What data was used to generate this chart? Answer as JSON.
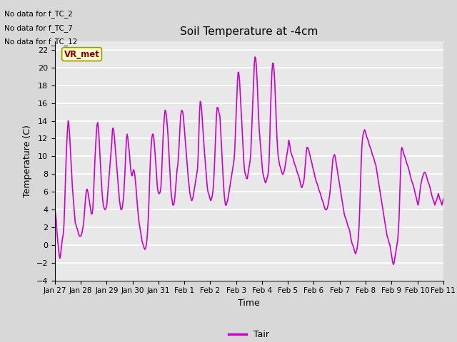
{
  "title": "Soil Temperature at -4cm",
  "xlabel": "Time",
  "ylabel": "Temperature (C)",
  "ylim": [
    -4,
    23
  ],
  "yticks": [
    -4,
    -2,
    0,
    2,
    4,
    6,
    8,
    10,
    12,
    14,
    16,
    18,
    20,
    22
  ],
  "line_color": "#cc00cc",
  "line_width": 1.2,
  "fig_bg_color": "#d8d8d8",
  "plot_bg_color": "#e8e8e8",
  "grid_color": "#ffffff",
  "legend_label": "Tair",
  "annotations": [
    "No data for f_TC_2",
    "No data for f_TC_7",
    "No data for f_TC_12"
  ],
  "annotation_box_label": "VR_met",
  "x_tick_labels": [
    "Jan 27",
    "Jan 28",
    "Jan 29",
    "Jan 30",
    "Jan 31",
    "Feb 1",
    "Feb 2",
    "Feb 3",
    "Feb 4",
    "Feb 5",
    "Feb 6",
    "Feb 7",
    "Feb 8",
    "Feb 9",
    "Feb 10",
    "Feb 11"
  ],
  "temp_data": [
    4.1,
    3.5,
    2.8,
    1.5,
    0.5,
    -0.2,
    -1.0,
    -1.5,
    -1.2,
    -0.5,
    0.2,
    0.8,
    1.2,
    2.3,
    4.5,
    7.0,
    9.5,
    11.5,
    13.0,
    14.0,
    13.5,
    12.5,
    11.0,
    9.5,
    8.0,
    6.5,
    5.5,
    4.5,
    3.5,
    2.5,
    2.3,
    2.0,
    1.8,
    1.5,
    1.2,
    1.0,
    1.0,
    1.0,
    1.2,
    1.5,
    2.0,
    2.5,
    3.5,
    4.5,
    5.5,
    6.2,
    6.3,
    6.0,
    5.5,
    5.0,
    4.5,
    4.0,
    3.5,
    3.5,
    4.0,
    5.5,
    7.5,
    9.5,
    11.0,
    12.5,
    13.5,
    13.8,
    13.2,
    12.0,
    10.5,
    9.0,
    7.5,
    6.2,
    5.2,
    4.5,
    4.2,
    4.0,
    4.0,
    4.2,
    4.5,
    5.5,
    6.5,
    7.5,
    8.5,
    9.5,
    10.5,
    11.5,
    13.0,
    13.2,
    12.8,
    12.0,
    11.0,
    10.0,
    9.0,
    8.0,
    7.0,
    6.0,
    5.0,
    4.5,
    4.0,
    4.0,
    4.2,
    4.8,
    5.5,
    7.0,
    8.5,
    10.5,
    12.0,
    12.5,
    12.0,
    11.2,
    10.5,
    9.5,
    8.5,
    8.0,
    7.8,
    8.2,
    8.5,
    8.3,
    7.8,
    7.0,
    6.0,
    5.0,
    4.0,
    3.2,
    2.5,
    2.0,
    1.5,
    1.0,
    0.5,
    0.2,
    -0.1,
    -0.3,
    -0.5,
    -0.4,
    -0.1,
    0.5,
    1.5,
    3.0,
    5.0,
    7.5,
    9.5,
    11.0,
    12.0,
    12.5,
    12.5,
    12.0,
    11.0,
    10.0,
    8.8,
    7.5,
    6.5,
    6.0,
    5.8,
    5.8,
    6.0,
    6.5,
    8.0,
    10.0,
    12.0,
    13.5,
    14.5,
    15.2,
    15.0,
    14.5,
    13.5,
    12.5,
    11.0,
    9.5,
    8.0,
    6.5,
    5.5,
    5.0,
    4.5,
    4.5,
    4.8,
    5.5,
    6.5,
    7.5,
    8.5,
    9.0,
    10.0,
    11.5,
    13.0,
    14.5,
    15.0,
    15.2,
    15.0,
    14.5,
    13.5,
    12.5,
    11.5,
    10.5,
    9.5,
    8.5,
    7.5,
    6.8,
    6.0,
    5.5,
    5.2,
    5.0,
    5.2,
    5.5,
    6.0,
    6.5,
    7.0,
    7.5,
    8.0,
    8.5,
    10.0,
    12.5,
    15.0,
    16.2,
    16.0,
    15.2,
    14.0,
    12.8,
    11.5,
    10.5,
    9.5,
    8.5,
    7.5,
    6.5,
    6.0,
    5.8,
    5.5,
    5.2,
    5.0,
    5.2,
    5.5,
    6.0,
    7.0,
    8.5,
    10.5,
    12.5,
    14.5,
    15.5,
    15.5,
    15.2,
    14.8,
    14.5,
    13.0,
    11.5,
    10.0,
    8.5,
    7.0,
    5.8,
    5.0,
    4.5,
    4.5,
    4.8,
    5.0,
    5.5,
    6.0,
    6.5,
    7.0,
    7.5,
    8.0,
    8.5,
    9.0,
    9.5,
    10.5,
    12.5,
    14.5,
    16.5,
    18.5,
    19.5,
    19.3,
    18.5,
    17.0,
    15.5,
    14.0,
    12.5,
    11.0,
    9.5,
    8.5,
    8.0,
    7.8,
    7.5,
    7.5,
    8.0,
    8.5,
    9.0,
    9.5,
    10.5,
    12.5,
    14.5,
    16.5,
    18.5,
    20.5,
    21.2,
    21.0,
    20.0,
    18.5,
    16.5,
    14.5,
    13.0,
    12.0,
    11.0,
    10.0,
    9.0,
    8.2,
    7.8,
    7.5,
    7.2,
    7.0,
    7.2,
    7.5,
    7.8,
    8.2,
    9.5,
    12.0,
    15.0,
    17.5,
    19.5,
    20.5,
    20.5,
    19.8,
    18.5,
    16.5,
    14.5,
    12.5,
    11.0,
    10.0,
    9.5,
    9.0,
    8.8,
    8.5,
    8.2,
    8.0,
    8.0,
    8.2,
    8.5,
    9.0,
    9.5,
    10.0,
    10.5,
    11.0,
    11.8,
    11.5,
    11.0,
    10.5,
    10.2,
    10.0,
    9.8,
    9.5,
    9.2,
    9.0,
    8.8,
    8.5,
    8.2,
    8.0,
    7.8,
    7.5,
    7.2,
    6.8,
    6.5,
    6.5,
    6.8,
    7.0,
    7.5,
    8.5,
    9.5,
    10.5,
    11.0,
    11.0,
    10.8,
    10.5,
    10.2,
    9.8,
    9.5,
    9.2,
    8.8,
    8.5,
    8.2,
    7.8,
    7.5,
    7.2,
    7.0,
    6.8,
    6.5,
    6.2,
    6.0,
    5.8,
    5.5,
    5.2,
    5.0,
    4.8,
    4.5,
    4.2,
    4.0,
    4.0,
    4.0,
    4.2,
    4.5,
    5.0,
    5.5,
    6.2,
    7.0,
    8.0,
    9.0,
    9.8,
    10.0,
    10.2,
    10.0,
    9.5,
    9.0,
    8.5,
    8.0,
    7.5,
    7.0,
    6.5,
    6.0,
    5.5,
    5.0,
    4.5,
    4.0,
    3.5,
    3.2,
    3.0,
    2.8,
    2.5,
    2.2,
    2.0,
    1.8,
    1.5,
    1.0,
    0.5,
    0.2,
    0.0,
    -0.2,
    -0.5,
    -0.8,
    -1.0,
    -0.8,
    -0.5,
    0.0,
    0.8,
    2.0,
    4.0,
    6.5,
    9.0,
    11.0,
    12.0,
    12.5,
    12.8,
    13.0,
    12.8,
    12.5,
    12.2,
    12.0,
    11.8,
    11.5,
    11.2,
    11.0,
    10.8,
    10.5,
    10.2,
    10.0,
    9.8,
    9.5,
    9.2,
    9.0,
    8.5,
    8.0,
    7.5,
    7.0,
    6.5,
    6.0,
    5.5,
    5.0,
    4.5,
    4.0,
    3.5,
    3.0,
    2.5,
    2.0,
    1.5,
    1.0,
    0.8,
    0.5,
    0.2,
    0.0,
    -0.5,
    -1.0,
    -1.5,
    -2.0,
    -2.2,
    -2.0,
    -1.5,
    -1.0,
    -0.5,
    0.0,
    0.5,
    1.5,
    3.0,
    5.5,
    8.0,
    10.5,
    11.0,
    10.8,
    10.5,
    10.2,
    10.0,
    9.8,
    9.5,
    9.2,
    9.0,
    8.8,
    8.5,
    8.2,
    7.8,
    7.5,
    7.2,
    7.0,
    6.8,
    6.5,
    6.2,
    5.8,
    5.5,
    5.2,
    4.8,
    4.5,
    4.8,
    5.5,
    6.2,
    6.8,
    7.2,
    7.5,
    7.8,
    8.0,
    8.2,
    8.2,
    8.0,
    7.8,
    7.5,
    7.2,
    7.0,
    6.8,
    6.5,
    6.2,
    5.8,
    5.5,
    5.2,
    5.0,
    4.8,
    4.5,
    4.8,
    5.0,
    5.2,
    5.5,
    5.8,
    5.5,
    5.2,
    5.0,
    4.8,
    4.5,
    4.8,
    5.2
  ]
}
